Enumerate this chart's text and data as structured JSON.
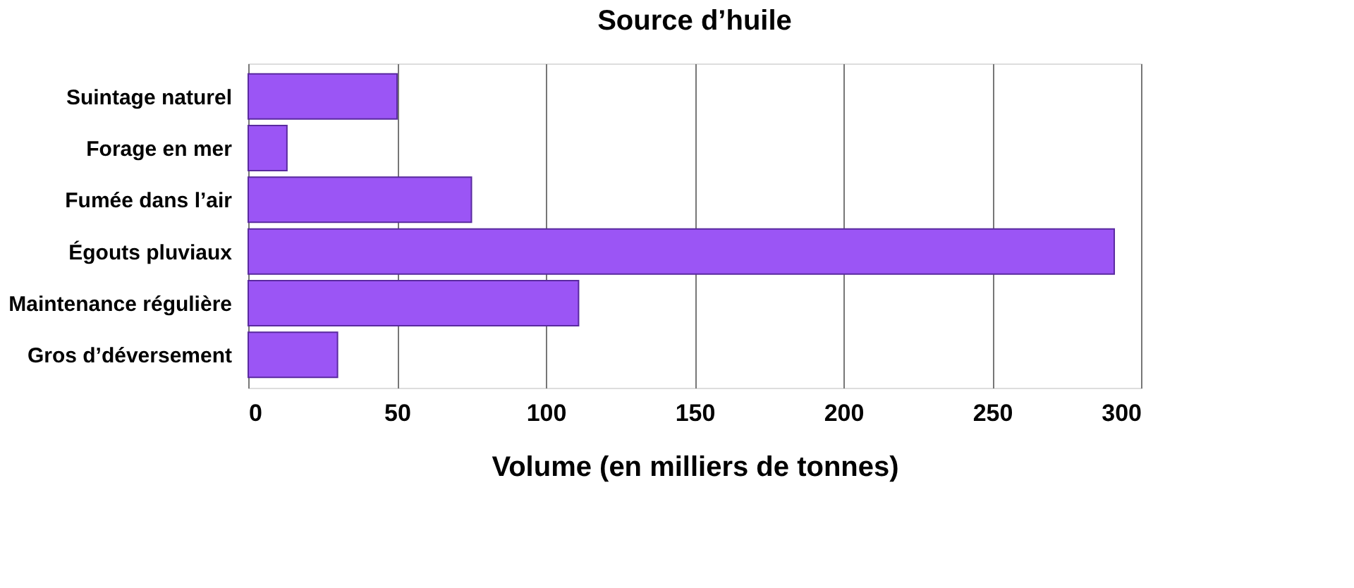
{
  "chart_data": {
    "type": "bar",
    "orientation": "horizontal",
    "title": "Source d’huile",
    "xlabel": "Volume (en milliers de tonnes)",
    "categories": [
      "Suintage naturel",
      "Forage en mer",
      "Fumée dans l’air",
      "Égouts pluviaux",
      "Maintenance régulière",
      "Gros d’déversement"
    ],
    "values": [
      50,
      13,
      75,
      291,
      111,
      30
    ],
    "color": "#9b55f5",
    "xlim": [
      0,
      300
    ],
    "xticks": [
      0,
      50,
      100,
      150,
      200,
      250,
      300
    ],
    "grid": "x"
  }
}
